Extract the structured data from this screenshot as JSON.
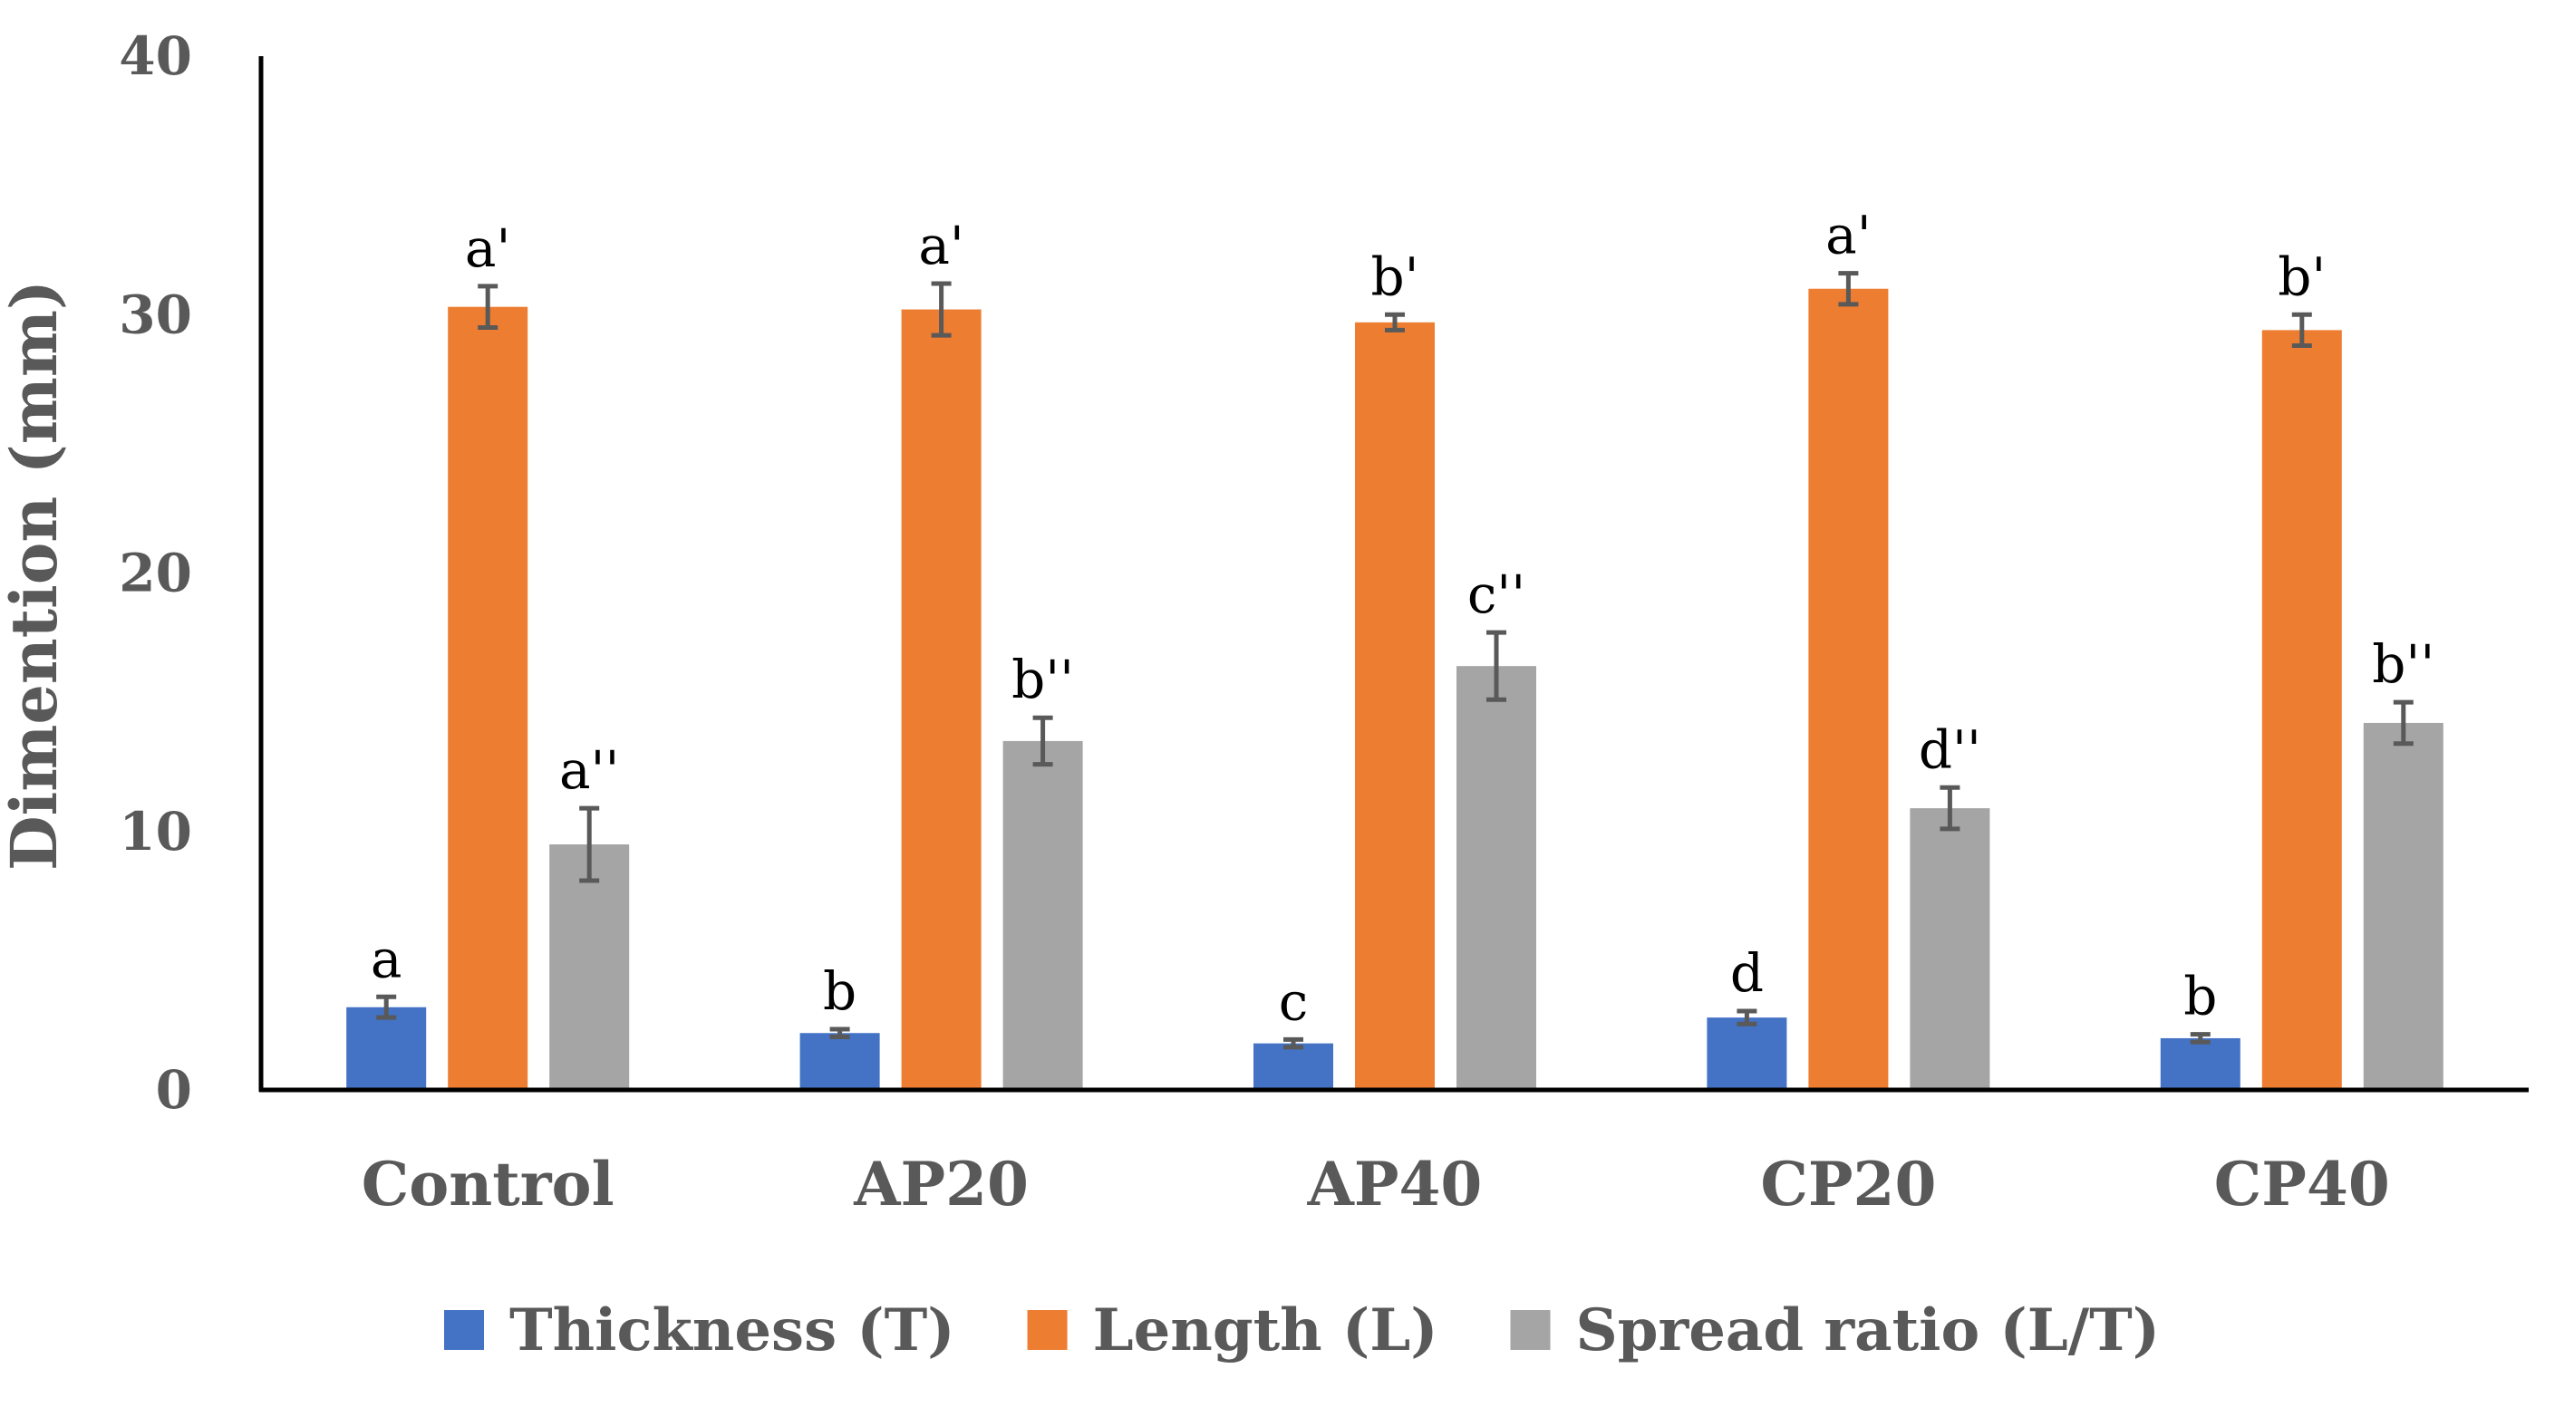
{
  "chart_data": {
    "type": "bar",
    "title": "",
    "xlabel": "",
    "ylabel": "Dimention (mm)",
    "ylim": [
      0,
      40
    ],
    "yticks": [
      "0",
      "10",
      "20",
      "30",
      "40"
    ],
    "grid": false,
    "legend_position": "bottom",
    "categories": [
      "Control",
      "AP20",
      "AP40",
      "CP20",
      "CP40"
    ],
    "series": [
      {
        "name": "Thickness (T)",
        "color": "#4472C4",
        "values": [
          3.2,
          2.2,
          1.8,
          2.8,
          2.0
        ],
        "errors": [
          0.4,
          0.15,
          0.15,
          0.25,
          0.15
        ],
        "labels": [
          "a",
          "b",
          "c",
          "d",
          "b"
        ]
      },
      {
        "name": "Length (L)",
        "color": "#ED7D31",
        "values": [
          30.3,
          30.2,
          29.7,
          31.0,
          29.4
        ],
        "errors": [
          0.8,
          1.0,
          0.3,
          0.6,
          0.6
        ],
        "labels": [
          "a'",
          "a'",
          "b'",
          "a'",
          "b'"
        ]
      },
      {
        "name": "Spread ratio (L/T)",
        "color": "#A5A5A5",
        "values": [
          9.5,
          13.5,
          16.4,
          10.9,
          14.2
        ],
        "errors": [
          1.4,
          0.9,
          1.3,
          0.8,
          0.8
        ],
        "labels": [
          "a''",
          "b''",
          "c''",
          "d''",
          "b''"
        ]
      }
    ]
  }
}
